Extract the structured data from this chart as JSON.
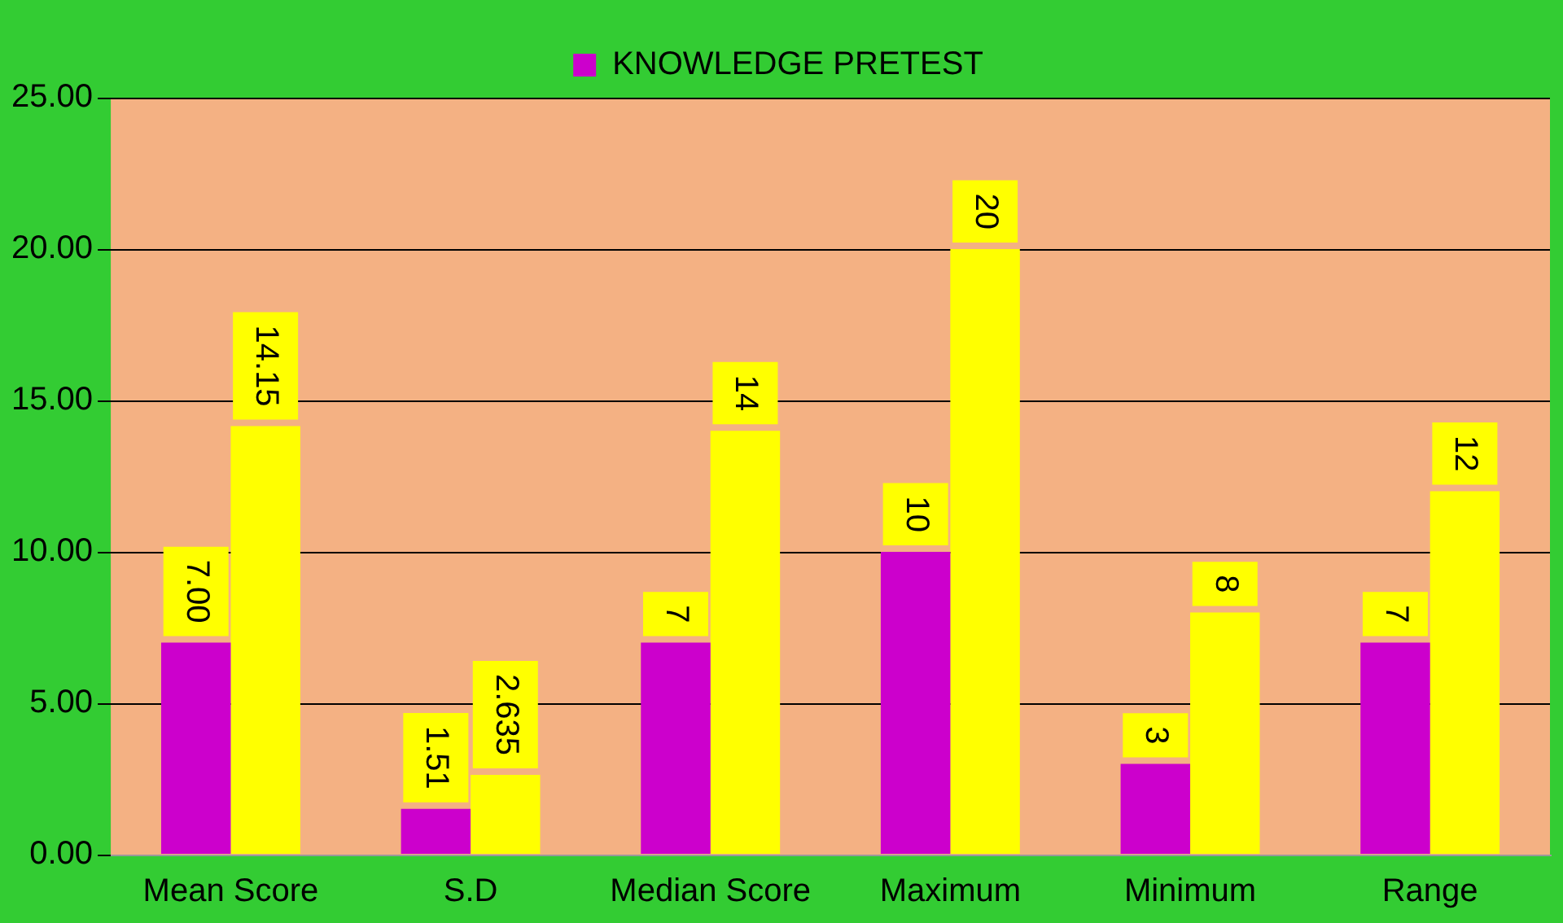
{
  "chart_data": {
    "type": "bar",
    "categories": [
      "Mean Score",
      "S.D",
      "Median Score",
      "Maximum",
      "Minimum",
      "Range"
    ],
    "series": [
      {
        "name": "KNOWLEDGE PRETEST",
        "color": "#cc00cc",
        "values": [
          7.0,
          1.51,
          7,
          10,
          3,
          7
        ],
        "value_labels": [
          "7.00",
          "1.51",
          "7",
          "10",
          "3",
          "7"
        ]
      },
      {
        "color": "#ffff00",
        "values": [
          14.15,
          2.635,
          14,
          20,
          8,
          12
        ],
        "value_labels": [
          "14.15",
          "2.635",
          "14",
          "20",
          "8",
          "12"
        ]
      }
    ],
    "ylim": [
      0,
      25
    ],
    "yticks": [
      {
        "value": 0,
        "label": "0.00"
      },
      {
        "value": 5,
        "label": "5.00"
      },
      {
        "value": 10,
        "label": "10.00"
      },
      {
        "value": 15,
        "label": "15.00"
      },
      {
        "value": 20,
        "label": "20.00"
      },
      {
        "value": 25,
        "label": "25.00"
      }
    ],
    "grid": "y",
    "legend": "top"
  }
}
